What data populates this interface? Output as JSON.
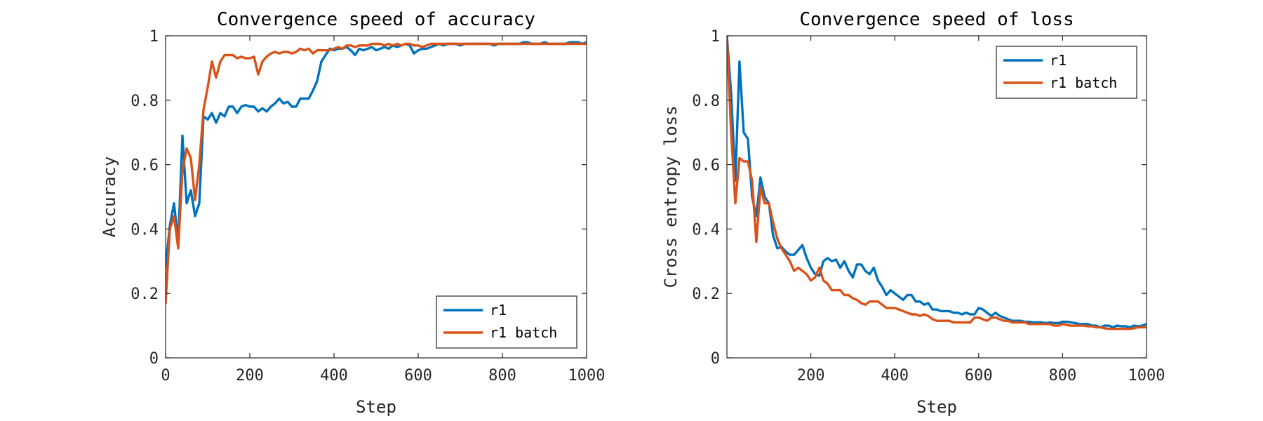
{
  "colors": {
    "r1": "#0072BD",
    "r1_batch": "#D95319"
  },
  "chart_data": [
    {
      "type": "line",
      "title": "Convergence speed of accuracy",
      "xlabel": "Step",
      "ylabel": "Accuracy",
      "xlim": [
        0,
        1000
      ],
      "ylim": [
        0,
        1
      ],
      "xticks": [
        0,
        200,
        400,
        600,
        800,
        1000
      ],
      "xtick_labels": [
        "0",
        "200",
        "400",
        "600",
        "800",
        "1000"
      ],
      "yticks": [
        0,
        0.2,
        0.4,
        0.6,
        0.8,
        1
      ],
      "ytick_labels": [
        "0",
        "0.2",
        "0.4",
        "0.6",
        "0.8",
        "1"
      ],
      "grid": false,
      "legend_position": "bottom-right",
      "series": [
        {
          "name": "r1",
          "x": [
            0,
            10,
            20,
            30,
            40,
            50,
            60,
            70,
            80,
            90,
            100,
            110,
            120,
            130,
            140,
            150,
            160,
            170,
            180,
            190,
            200,
            210,
            220,
            230,
            240,
            250,
            260,
            270,
            280,
            290,
            300,
            310,
            320,
            330,
            340,
            350,
            360,
            370,
            380,
            390,
            400,
            410,
            420,
            430,
            440,
            450,
            460,
            470,
            480,
            490,
            500,
            510,
            520,
            530,
            540,
            550,
            560,
            570,
            580,
            590,
            600,
            610,
            620,
            630,
            640,
            650,
            660,
            670,
            680,
            690,
            700,
            710,
            720,
            730,
            740,
            750,
            760,
            770,
            780,
            790,
            800,
            810,
            820,
            830,
            840,
            850,
            860,
            870,
            880,
            890,
            900,
            910,
            920,
            930,
            940,
            950,
            960,
            970,
            980,
            990,
            1000
          ],
          "y": [
            0.28,
            0.41,
            0.48,
            0.36,
            0.69,
            0.48,
            0.52,
            0.44,
            0.48,
            0.75,
            0.74,
            0.76,
            0.73,
            0.76,
            0.75,
            0.78,
            0.78,
            0.76,
            0.78,
            0.785,
            0.78,
            0.78,
            0.765,
            0.775,
            0.765,
            0.78,
            0.79,
            0.805,
            0.79,
            0.795,
            0.78,
            0.78,
            0.805,
            0.805,
            0.805,
            0.83,
            0.86,
            0.92,
            0.94,
            0.96,
            0.955,
            0.96,
            0.96,
            0.965,
            0.955,
            0.94,
            0.96,
            0.955,
            0.96,
            0.965,
            0.955,
            0.96,
            0.965,
            0.96,
            0.97,
            0.965,
            0.97,
            0.975,
            0.97,
            0.945,
            0.955,
            0.96,
            0.96,
            0.965,
            0.97,
            0.975,
            0.97,
            0.975,
            0.975,
            0.975,
            0.97,
            0.975,
            0.975,
            0.975,
            0.975,
            0.975,
            0.975,
            0.975,
            0.97,
            0.975,
            0.975,
            0.975,
            0.975,
            0.975,
            0.975,
            0.98,
            0.98,
            0.975,
            0.975,
            0.975,
            0.98,
            0.975,
            0.975,
            0.975,
            0.975,
            0.975,
            0.98,
            0.98,
            0.98,
            0.975,
            0.98
          ]
        },
        {
          "name": "r1 batch",
          "x": [
            0,
            10,
            20,
            30,
            40,
            50,
            60,
            70,
            80,
            90,
            100,
            110,
            120,
            130,
            140,
            150,
            160,
            170,
            180,
            190,
            200,
            210,
            220,
            230,
            240,
            250,
            260,
            270,
            280,
            290,
            300,
            310,
            320,
            330,
            340,
            350,
            360,
            370,
            380,
            390,
            400,
            410,
            420,
            430,
            440,
            450,
            460,
            470,
            480,
            490,
            500,
            510,
            520,
            530,
            540,
            550,
            560,
            570,
            580,
            590,
            600,
            610,
            620,
            630,
            640,
            650,
            660,
            670,
            680,
            690,
            700,
            710,
            720,
            730,
            740,
            750,
            760,
            770,
            780,
            790,
            800,
            810,
            820,
            830,
            840,
            850,
            860,
            870,
            880,
            890,
            900,
            910,
            920,
            930,
            940,
            950,
            960,
            970,
            980,
            990,
            1000
          ],
          "y": [
            0.17,
            0.4,
            0.44,
            0.34,
            0.58,
            0.65,
            0.62,
            0.49,
            0.6,
            0.77,
            0.84,
            0.92,
            0.87,
            0.92,
            0.94,
            0.94,
            0.94,
            0.93,
            0.935,
            0.93,
            0.93,
            0.935,
            0.88,
            0.92,
            0.935,
            0.945,
            0.95,
            0.945,
            0.95,
            0.95,
            0.945,
            0.95,
            0.96,
            0.955,
            0.96,
            0.945,
            0.955,
            0.955,
            0.955,
            0.955,
            0.96,
            0.965,
            0.96,
            0.97,
            0.97,
            0.965,
            0.97,
            0.97,
            0.97,
            0.975,
            0.975,
            0.975,
            0.97,
            0.975,
            0.97,
            0.975,
            0.97,
            0.975,
            0.975,
            0.97,
            0.97,
            0.965,
            0.97,
            0.975,
            0.975,
            0.975,
            0.975,
            0.975,
            0.975,
            0.975,
            0.975,
            0.975,
            0.975,
            0.975,
            0.975,
            0.975,
            0.975,
            0.975,
            0.975,
            0.975,
            0.975,
            0.975,
            0.975,
            0.975,
            0.975,
            0.975,
            0.975,
            0.975,
            0.975,
            0.975,
            0.975,
            0.975,
            0.975,
            0.975,
            0.975,
            0.975,
            0.975,
            0.975,
            0.975,
            0.975,
            0.975
          ]
        }
      ]
    },
    {
      "type": "line",
      "title": "Convergence speed of loss",
      "xlabel": "Step",
      "ylabel": "Cross entropy loss",
      "xlim": [
        0,
        1000
      ],
      "ylim": [
        0,
        1
      ],
      "xticks": [
        200,
        400,
        600,
        800,
        1000
      ],
      "xtick_labels": [
        "200",
        "400",
        "600",
        "800",
        "1000"
      ],
      "yticks": [
        0,
        0.2,
        0.4,
        0.6,
        0.8,
        1
      ],
      "ytick_labels": [
        "0",
        "0.2",
        "0.4",
        "0.6",
        "0.8",
        "1"
      ],
      "grid": false,
      "legend_position": "top-right",
      "series": [
        {
          "name": "r1",
          "x": [
            0,
            10,
            20,
            30,
            40,
            50,
            60,
            70,
            80,
            90,
            100,
            110,
            120,
            130,
            140,
            150,
            160,
            170,
            180,
            190,
            200,
            210,
            220,
            230,
            240,
            250,
            260,
            270,
            280,
            290,
            300,
            310,
            320,
            330,
            340,
            350,
            360,
            370,
            380,
            390,
            400,
            410,
            420,
            430,
            440,
            450,
            460,
            470,
            480,
            490,
            500,
            510,
            520,
            530,
            540,
            550,
            560,
            570,
            580,
            590,
            600,
            610,
            620,
            630,
            640,
            650,
            660,
            670,
            680,
            690,
            700,
            710,
            720,
            730,
            740,
            750,
            760,
            770,
            780,
            790,
            800,
            810,
            820,
            830,
            840,
            850,
            860,
            870,
            880,
            890,
            900,
            910,
            920,
            930,
            940,
            950,
            960,
            970,
            980,
            990,
            1000
          ],
          "y": [
            1.0,
            0.82,
            0.55,
            0.92,
            0.7,
            0.68,
            0.5,
            0.44,
            0.56,
            0.5,
            0.48,
            0.38,
            0.34,
            0.345,
            0.33,
            0.32,
            0.32,
            0.335,
            0.35,
            0.31,
            0.28,
            0.26,
            0.255,
            0.3,
            0.31,
            0.3,
            0.305,
            0.28,
            0.3,
            0.27,
            0.25,
            0.29,
            0.29,
            0.27,
            0.26,
            0.28,
            0.24,
            0.22,
            0.195,
            0.21,
            0.2,
            0.19,
            0.18,
            0.195,
            0.195,
            0.175,
            0.175,
            0.165,
            0.17,
            0.15,
            0.15,
            0.145,
            0.145,
            0.145,
            0.14,
            0.14,
            0.135,
            0.14,
            0.135,
            0.135,
            0.155,
            0.15,
            0.14,
            0.13,
            0.14,
            0.13,
            0.125,
            0.12,
            0.115,
            0.115,
            0.115,
            0.112,
            0.112,
            0.11,
            0.11,
            0.11,
            0.108,
            0.11,
            0.108,
            0.108,
            0.112,
            0.112,
            0.11,
            0.108,
            0.105,
            0.105,
            0.105,
            0.1,
            0.1,
            0.095,
            0.1,
            0.1,
            0.095,
            0.1,
            0.098,
            0.098,
            0.095,
            0.1,
            0.098,
            0.1,
            0.105
          ]
        },
        {
          "name": "r1 batch",
          "x": [
            0,
            10,
            20,
            30,
            40,
            50,
            60,
            70,
            80,
            90,
            100,
            110,
            120,
            130,
            140,
            150,
            160,
            170,
            180,
            190,
            200,
            210,
            220,
            230,
            240,
            250,
            260,
            270,
            280,
            290,
            300,
            310,
            320,
            330,
            340,
            350,
            360,
            370,
            380,
            390,
            400,
            410,
            420,
            430,
            440,
            450,
            460,
            470,
            480,
            490,
            500,
            510,
            520,
            530,
            540,
            550,
            560,
            570,
            580,
            590,
            600,
            610,
            620,
            630,
            640,
            650,
            660,
            670,
            680,
            690,
            700,
            710,
            720,
            730,
            740,
            750,
            760,
            770,
            780,
            790,
            800,
            810,
            820,
            830,
            840,
            850,
            860,
            870,
            880,
            890,
            900,
            910,
            920,
            930,
            940,
            950,
            960,
            970,
            980,
            990,
            1000
          ],
          "y": [
            1.0,
            0.7,
            0.48,
            0.62,
            0.61,
            0.61,
            0.55,
            0.36,
            0.53,
            0.48,
            0.48,
            0.42,
            0.37,
            0.34,
            0.32,
            0.3,
            0.27,
            0.28,
            0.27,
            0.26,
            0.24,
            0.25,
            0.28,
            0.24,
            0.23,
            0.21,
            0.21,
            0.21,
            0.195,
            0.195,
            0.185,
            0.18,
            0.17,
            0.165,
            0.175,
            0.175,
            0.175,
            0.165,
            0.155,
            0.155,
            0.155,
            0.15,
            0.145,
            0.14,
            0.135,
            0.135,
            0.13,
            0.135,
            0.13,
            0.12,
            0.115,
            0.115,
            0.115,
            0.115,
            0.11,
            0.11,
            0.11,
            0.11,
            0.11,
            0.125,
            0.125,
            0.12,
            0.115,
            0.125,
            0.125,
            0.12,
            0.115,
            0.115,
            0.11,
            0.11,
            0.11,
            0.11,
            0.105,
            0.105,
            0.105,
            0.105,
            0.105,
            0.105,
            0.1,
            0.1,
            0.105,
            0.102,
            0.1,
            0.1,
            0.1,
            0.1,
            0.098,
            0.098,
            0.095,
            0.095,
            0.092,
            0.09,
            0.09,
            0.09,
            0.09,
            0.09,
            0.09,
            0.092,
            0.095,
            0.095,
            0.095
          ]
        }
      ]
    }
  ]
}
